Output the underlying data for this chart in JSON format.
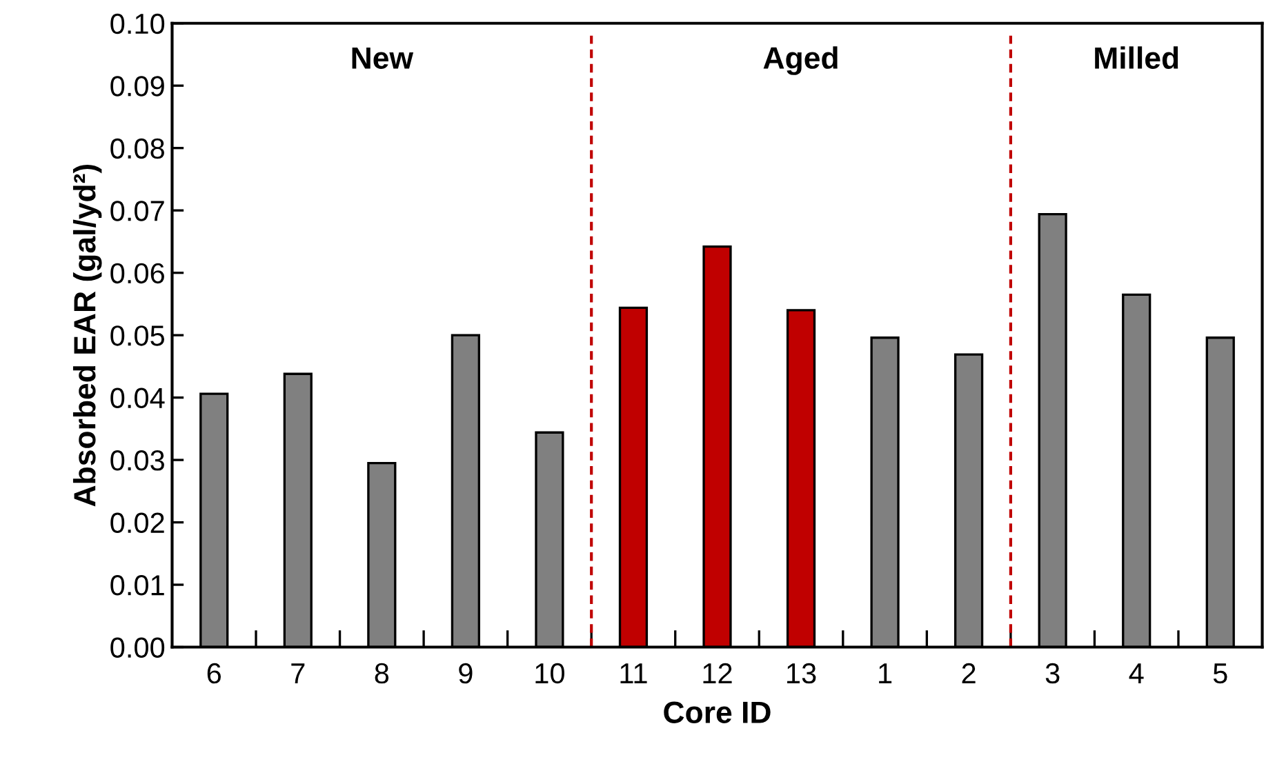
{
  "chart_data": {
    "type": "bar",
    "xlabel": "Core ID",
    "ylabel": "Absorbed EAR (gal/yd²)",
    "categories": [
      "6",
      "7",
      "8",
      "9",
      "10",
      "11",
      "12",
      "13",
      "1",
      "2",
      "3",
      "4",
      "5"
    ],
    "values": [
      0.0406,
      0.0438,
      0.0295,
      0.05,
      0.0344,
      0.0544,
      0.0642,
      0.054,
      0.0496,
      0.0469,
      0.0694,
      0.0565,
      0.0496
    ],
    "colors": [
      "#808080",
      "#808080",
      "#808080",
      "#808080",
      "#808080",
      "#c00000",
      "#c00000",
      "#c00000",
      "#808080",
      "#808080",
      "#808080",
      "#808080",
      "#808080"
    ],
    "ylim": [
      0,
      0.1
    ],
    "yticks": [
      {
        "value": 0,
        "label": "0.00"
      },
      {
        "value": 0.01,
        "label": "0.01"
      },
      {
        "value": 0.02,
        "label": "0.02"
      },
      {
        "value": 0.03,
        "label": "0.03"
      },
      {
        "value": 0.04,
        "label": "0.04"
      },
      {
        "value": 0.05,
        "label": "0.05"
      },
      {
        "value": 0.06,
        "label": "0.06"
      },
      {
        "value": 0.07,
        "label": "0.07"
      },
      {
        "value": 0.08,
        "label": "0.08"
      },
      {
        "value": 0.09,
        "label": "0.09"
      },
      {
        "value": 0.1,
        "label": "0.10"
      }
    ],
    "annotations": [
      "New",
      "Aged",
      "Milled"
    ],
    "grid": false,
    "legend": false
  }
}
